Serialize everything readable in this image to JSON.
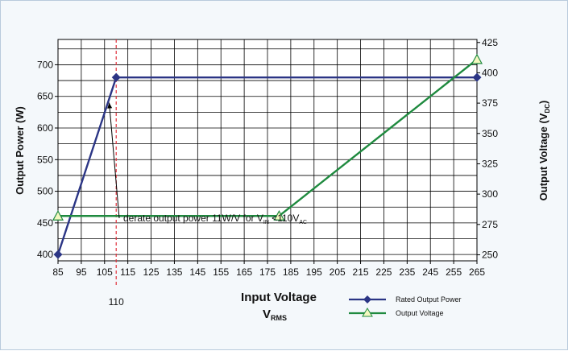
{
  "chart_data": {
    "type": "line",
    "x_axis": {
      "label": "Input Voltage",
      "sublabel": "V",
      "sublabel_sub": "RMS",
      "range": [
        85,
        265
      ],
      "ticks": [
        85,
        95,
        105,
        115,
        125,
        135,
        145,
        155,
        165,
        175,
        185,
        195,
        205,
        215,
        225,
        235,
        245,
        255,
        265
      ],
      "marker_value": 110,
      "marker_label": "110"
    },
    "y_left": {
      "label": "Output Power (W)",
      "range": [
        390,
        740
      ],
      "ticks": [
        400,
        450,
        500,
        550,
        600,
        650,
        700
      ],
      "grid_step": 25
    },
    "y_right": {
      "label_main": "Output Voltage (V",
      "label_sub": "DC",
      "label_end": ")",
      "range": [
        245,
        427.5
      ],
      "ticks": [
        250,
        275,
        300,
        325,
        350,
        375,
        400,
        425
      ]
    },
    "grid": true,
    "series": [
      {
        "name": "Rated Output Power",
        "axis": "left",
        "color": "#2b3585",
        "marker": "diamond",
        "points": [
          [
            85,
            400
          ],
          [
            110,
            680
          ],
          [
            265,
            680
          ]
        ]
      },
      {
        "name": "Output Voltage",
        "axis": "right",
        "color": "#1f8a3f",
        "marker": "triangle",
        "points": [
          [
            85,
            282
          ],
          [
            180,
            282
          ],
          [
            265,
            411
          ]
        ]
      }
    ],
    "annotation": {
      "text_main": "derate output power 11W/V for V",
      "text_sub1": "IN",
      "text_mid": " <110V",
      "text_sub2": "AC",
      "arrow_to": [
        107,
        640
      ]
    },
    "legend_position": "bottom-right"
  }
}
